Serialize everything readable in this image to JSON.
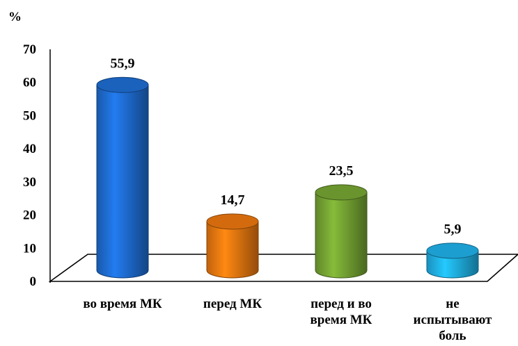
{
  "chart_data": {
    "type": "bar",
    "ylabel": "%",
    "ylim": [
      0,
      70
    ],
    "yticks": [
      "0",
      "10",
      "20",
      "30",
      "40",
      "50",
      "60",
      "70"
    ],
    "categories": [
      [
        "во время МК"
      ],
      [
        "перед МК"
      ],
      [
        "перед и во",
        "время МК"
      ],
      [
        "не",
        "испытывают",
        "боль"
      ]
    ],
    "values": [
      55.9,
      14.7,
      23.5,
      5.9
    ],
    "data_labels": [
      "55,9",
      "14,7",
      "23,5",
      "5,9"
    ],
    "colors": [
      "#1f6fd6",
      "#f07a10",
      "#78a834",
      "#20b4ec"
    ],
    "grid": false,
    "legend": "none"
  }
}
